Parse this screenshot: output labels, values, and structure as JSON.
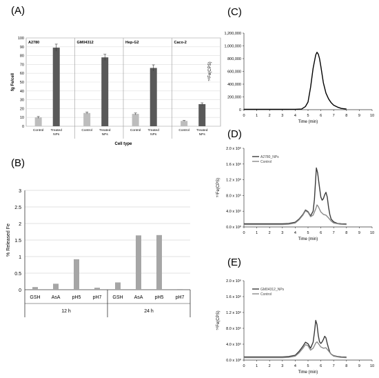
{
  "panel_labels": [
    "(A)",
    "(B)",
    "(C)",
    "(D)",
    "(E)"
  ],
  "chart_data": [
    {
      "panel": "(A)",
      "type": "bar",
      "ylabel": "fg Fe/cell",
      "xlabel": "Cell type",
      "ylim": [
        0,
        100
      ],
      "yticks": [
        0,
        10,
        20,
        30,
        40,
        50,
        60,
        70,
        80,
        90,
        100
      ],
      "cell_lines": [
        "A2780",
        "GM04312",
        "Hep-G2",
        "Caco-2"
      ],
      "categories": [
        "Control",
        "Treated NPs"
      ],
      "category_labels": [
        [
          "Control"
        ],
        [
          "Treated",
          "NPs"
        ]
      ],
      "values": [
        [
          10,
          89
        ],
        [
          15,
          78
        ],
        [
          14,
          66
        ],
        [
          6,
          25
        ]
      ],
      "errors": [
        [
          1,
          4
        ],
        [
          1,
          3.5
        ],
        [
          1,
          3.5
        ],
        [
          0.5,
          1.5
        ]
      ],
      "colors": [
        "#bdbdbd",
        "#595959"
      ],
      "grid": true
    },
    {
      "panel": "(B)",
      "type": "bar",
      "ylabel": "% Released Fe",
      "ylim": [
        0,
        3
      ],
      "yticks": [
        "0",
        "0.5",
        "1",
        "1.5",
        "2",
        "2.5",
        "3"
      ],
      "categories": [
        "GSH",
        "AsA",
        "pH5",
        "pH7",
        "GSH",
        "AsA",
        "pH5",
        "pH7"
      ],
      "groups": [
        "12 h",
        "24 h"
      ],
      "values": [
        0.08,
        0.18,
        0.92,
        0.06,
        0.22,
        1.64,
        1.65,
        0.02
      ],
      "color": "#a6a6a6",
      "grid": true
    },
    {
      "panel": "(C)",
      "type": "line",
      "ylabel": "⁵⁶Fe(CPS)",
      "xlabel": "Time (min)",
      "ylim": [
        0,
        1200000
      ],
      "yticks": [
        "0",
        "200,000",
        "400,000",
        "600,000",
        "800,000",
        "1,000,000",
        "1,200,000"
      ],
      "xlim": [
        0,
        10
      ],
      "xticks": [
        "0",
        "1",
        "2",
        "3",
        "4",
        "5",
        "6",
        "7",
        "8",
        "9",
        "10"
      ],
      "series": [
        {
          "x": [
            0,
            1,
            2,
            3,
            4,
            4.5,
            4.8,
            5.0,
            5.2,
            5.4,
            5.6,
            5.7,
            5.8,
            5.9,
            6.0,
            6.2,
            6.4,
            6.6,
            6.8,
            7.0,
            7.3,
            7.6,
            8.0
          ],
          "y": [
            5000,
            5000,
            5000,
            5000,
            6000,
            10000,
            50000,
            120000,
            350000,
            650000,
            860000,
            900000,
            870000,
            800000,
            680000,
            420000,
            260000,
            170000,
            110000,
            70000,
            40000,
            20000,
            10000
          ],
          "color": "#000000"
        }
      ]
    },
    {
      "panel": "(D)",
      "type": "line",
      "ylabel": "⁵⁶Fe(CPS)",
      "xlabel": "Time (min)",
      "ylim": [
        0,
        2000000
      ],
      "yticks": [
        "0.0 x 10⁰",
        "4.0 x 10⁵",
        "8.0 x 10⁵",
        "1.2 x 10⁶",
        "1.6 x 10⁶",
        "2.0 x 10⁶"
      ],
      "xlim": [
        0,
        10
      ],
      "xticks": [
        "0",
        "1",
        "2",
        "3",
        "4",
        "5",
        "6",
        "7",
        "8",
        "9",
        "10"
      ],
      "series": [
        {
          "name": "A2780_NPs",
          "color": "#3a3a3a",
          "x": [
            0,
            1,
            2,
            3,
            3.5,
            4,
            4.3,
            4.6,
            4.8,
            5.0,
            5.2,
            5.4,
            5.5,
            5.6,
            5.65,
            5.75,
            5.9,
            6.0,
            6.1,
            6.2,
            6.3,
            6.4,
            6.5,
            6.6,
            6.7,
            6.8,
            7.0,
            7.3,
            7.6,
            8.0
          ],
          "y": [
            80000,
            80000,
            80000,
            80000,
            90000,
            120000,
            200000,
            320000,
            430000,
            390000,
            280000,
            400000,
            700000,
            1250000,
            1500000,
            1380000,
            1000000,
            760000,
            680000,
            720000,
            820000,
            880000,
            760000,
            500000,
            320000,
            200000,
            130000,
            90000,
            80000,
            75000
          ]
        },
        {
          "name": "Control",
          "color": "#8a8a8a",
          "x": [
            0,
            1,
            2,
            3,
            3.5,
            4,
            4.3,
            4.6,
            4.8,
            5.0,
            5.2,
            5.4,
            5.6,
            5.7,
            5.8,
            6.0,
            6.2,
            6.4,
            6.6,
            6.8,
            7.0,
            7.5,
            8.0
          ],
          "y": [
            60000,
            60000,
            60000,
            60000,
            70000,
            100000,
            180000,
            300000,
            410000,
            370000,
            260000,
            300000,
            460000,
            560000,
            520000,
            380000,
            320000,
            300000,
            230000,
            150000,
            100000,
            70000,
            60000
          ]
        }
      ]
    },
    {
      "panel": "(E)",
      "type": "line",
      "ylabel": "⁵⁶Fe(CPS)",
      "xlabel": "Time (min)",
      "ylim": [
        0,
        2000000
      ],
      "yticks": [
        "0.0 x 10⁰",
        "4.0 x 10⁵",
        "8.0 x 10⁵",
        "1.2 x 10⁶",
        "1.6 x 10⁶",
        "2.0 x 10⁶"
      ],
      "xlim": [
        0,
        10
      ],
      "xticks": [
        "0",
        "1",
        "2",
        "3",
        "4",
        "5",
        "6",
        "7",
        "8",
        "9",
        "10"
      ],
      "series": [
        {
          "name": "GM04312_NPs",
          "color": "#3a3a3a",
          "x": [
            0,
            1,
            2,
            3,
            3.5,
            4,
            4.3,
            4.6,
            4.8,
            5.0,
            5.2,
            5.4,
            5.5,
            5.6,
            5.7,
            5.8,
            5.9,
            6.0,
            6.1,
            6.2,
            6.3,
            6.4,
            6.5,
            6.6,
            6.7,
            6.8,
            7.0,
            7.3,
            7.6,
            8.0
          ],
          "y": [
            80000,
            80000,
            80000,
            80000,
            90000,
            120000,
            220000,
            350000,
            450000,
            410000,
            300000,
            450000,
            700000,
            1000000,
            900000,
            620000,
            460000,
            420000,
            460000,
            520000,
            600000,
            560000,
            420000,
            300000,
            200000,
            150000,
            110000,
            90000,
            80000,
            75000
          ]
        },
        {
          "name": "Control",
          "color": "#8a8a8a",
          "x": [
            0,
            1,
            2,
            3,
            3.5,
            4,
            4.3,
            4.6,
            4.8,
            5.0,
            5.2,
            5.4,
            5.6,
            5.7,
            5.8,
            6.0,
            6.2,
            6.4,
            6.6,
            6.8,
            7.0,
            7.5,
            8.0
          ],
          "y": [
            60000,
            60000,
            60000,
            60000,
            70000,
            100000,
            180000,
            300000,
            390000,
            360000,
            250000,
            300000,
            430000,
            460000,
            420000,
            330000,
            300000,
            310000,
            230000,
            150000,
            100000,
            70000,
            60000
          ]
        }
      ]
    }
  ]
}
